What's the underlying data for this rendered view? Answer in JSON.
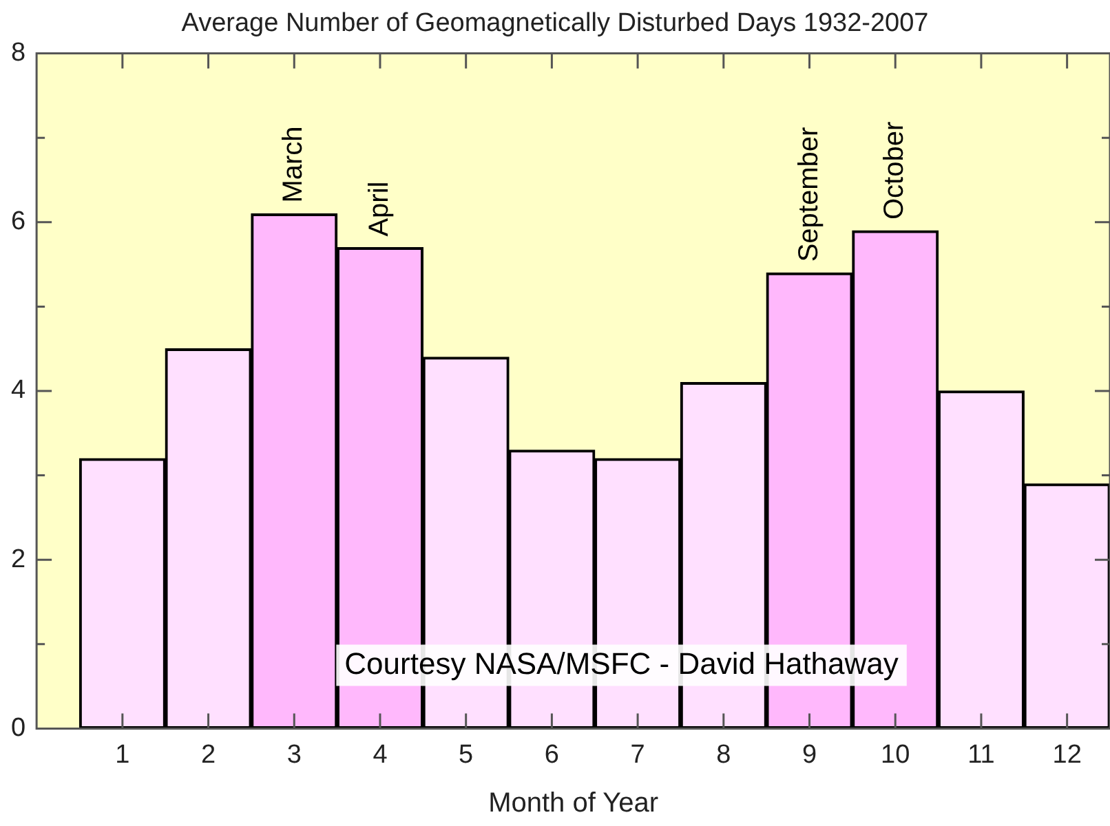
{
  "chart_data": {
    "type": "bar",
    "title": "Average Number of Geomagnetically Disturbed Days 1932-2007",
    "xlabel": "Month of Year",
    "x": [
      1,
      2,
      3,
      4,
      5,
      6,
      7,
      8,
      9,
      10,
      11,
      12
    ],
    "values": [
      3.2,
      4.5,
      6.1,
      5.7,
      4.4,
      3.3,
      3.2,
      4.1,
      5.4,
      5.9,
      4.0,
      2.9
    ],
    "colors": [
      "#ffe0ff",
      "#ffe0ff",
      "#ffb8fc",
      "#ffb8fc",
      "#ffe0ff",
      "#ffe0ff",
      "#ffe0ff",
      "#ffe0ff",
      "#ffb8fc",
      "#ffb8fc",
      "#ffe0ff",
      "#ffe0ff"
    ],
    "xlim": [
      0,
      12.5
    ],
    "xticks": [
      1,
      2,
      3,
      4,
      5,
      6,
      7,
      8,
      9,
      10,
      11,
      12
    ],
    "ylim": [
      0,
      8
    ],
    "yticks": [
      0,
      {
        "value": 1,
        "label": null
      },
      2,
      {
        "value": 3,
        "label": null
      },
      4,
      {
        "value": 5,
        "label": null
      },
      6,
      {
        "value": 7,
        "label": null
      },
      8
    ],
    "grid": false,
    "legend": false,
    "annotations": [
      {
        "text": "March",
        "x": 3,
        "y": 6.1
      },
      {
        "text": "April",
        "x": 4,
        "y": 5.7
      },
      {
        "text": "September",
        "x": 9,
        "y": 5.4
      },
      {
        "text": "October",
        "x": 10,
        "y": 5.9
      },
      "Courtesy NASA/MSFC - David Hathaway"
    ]
  }
}
